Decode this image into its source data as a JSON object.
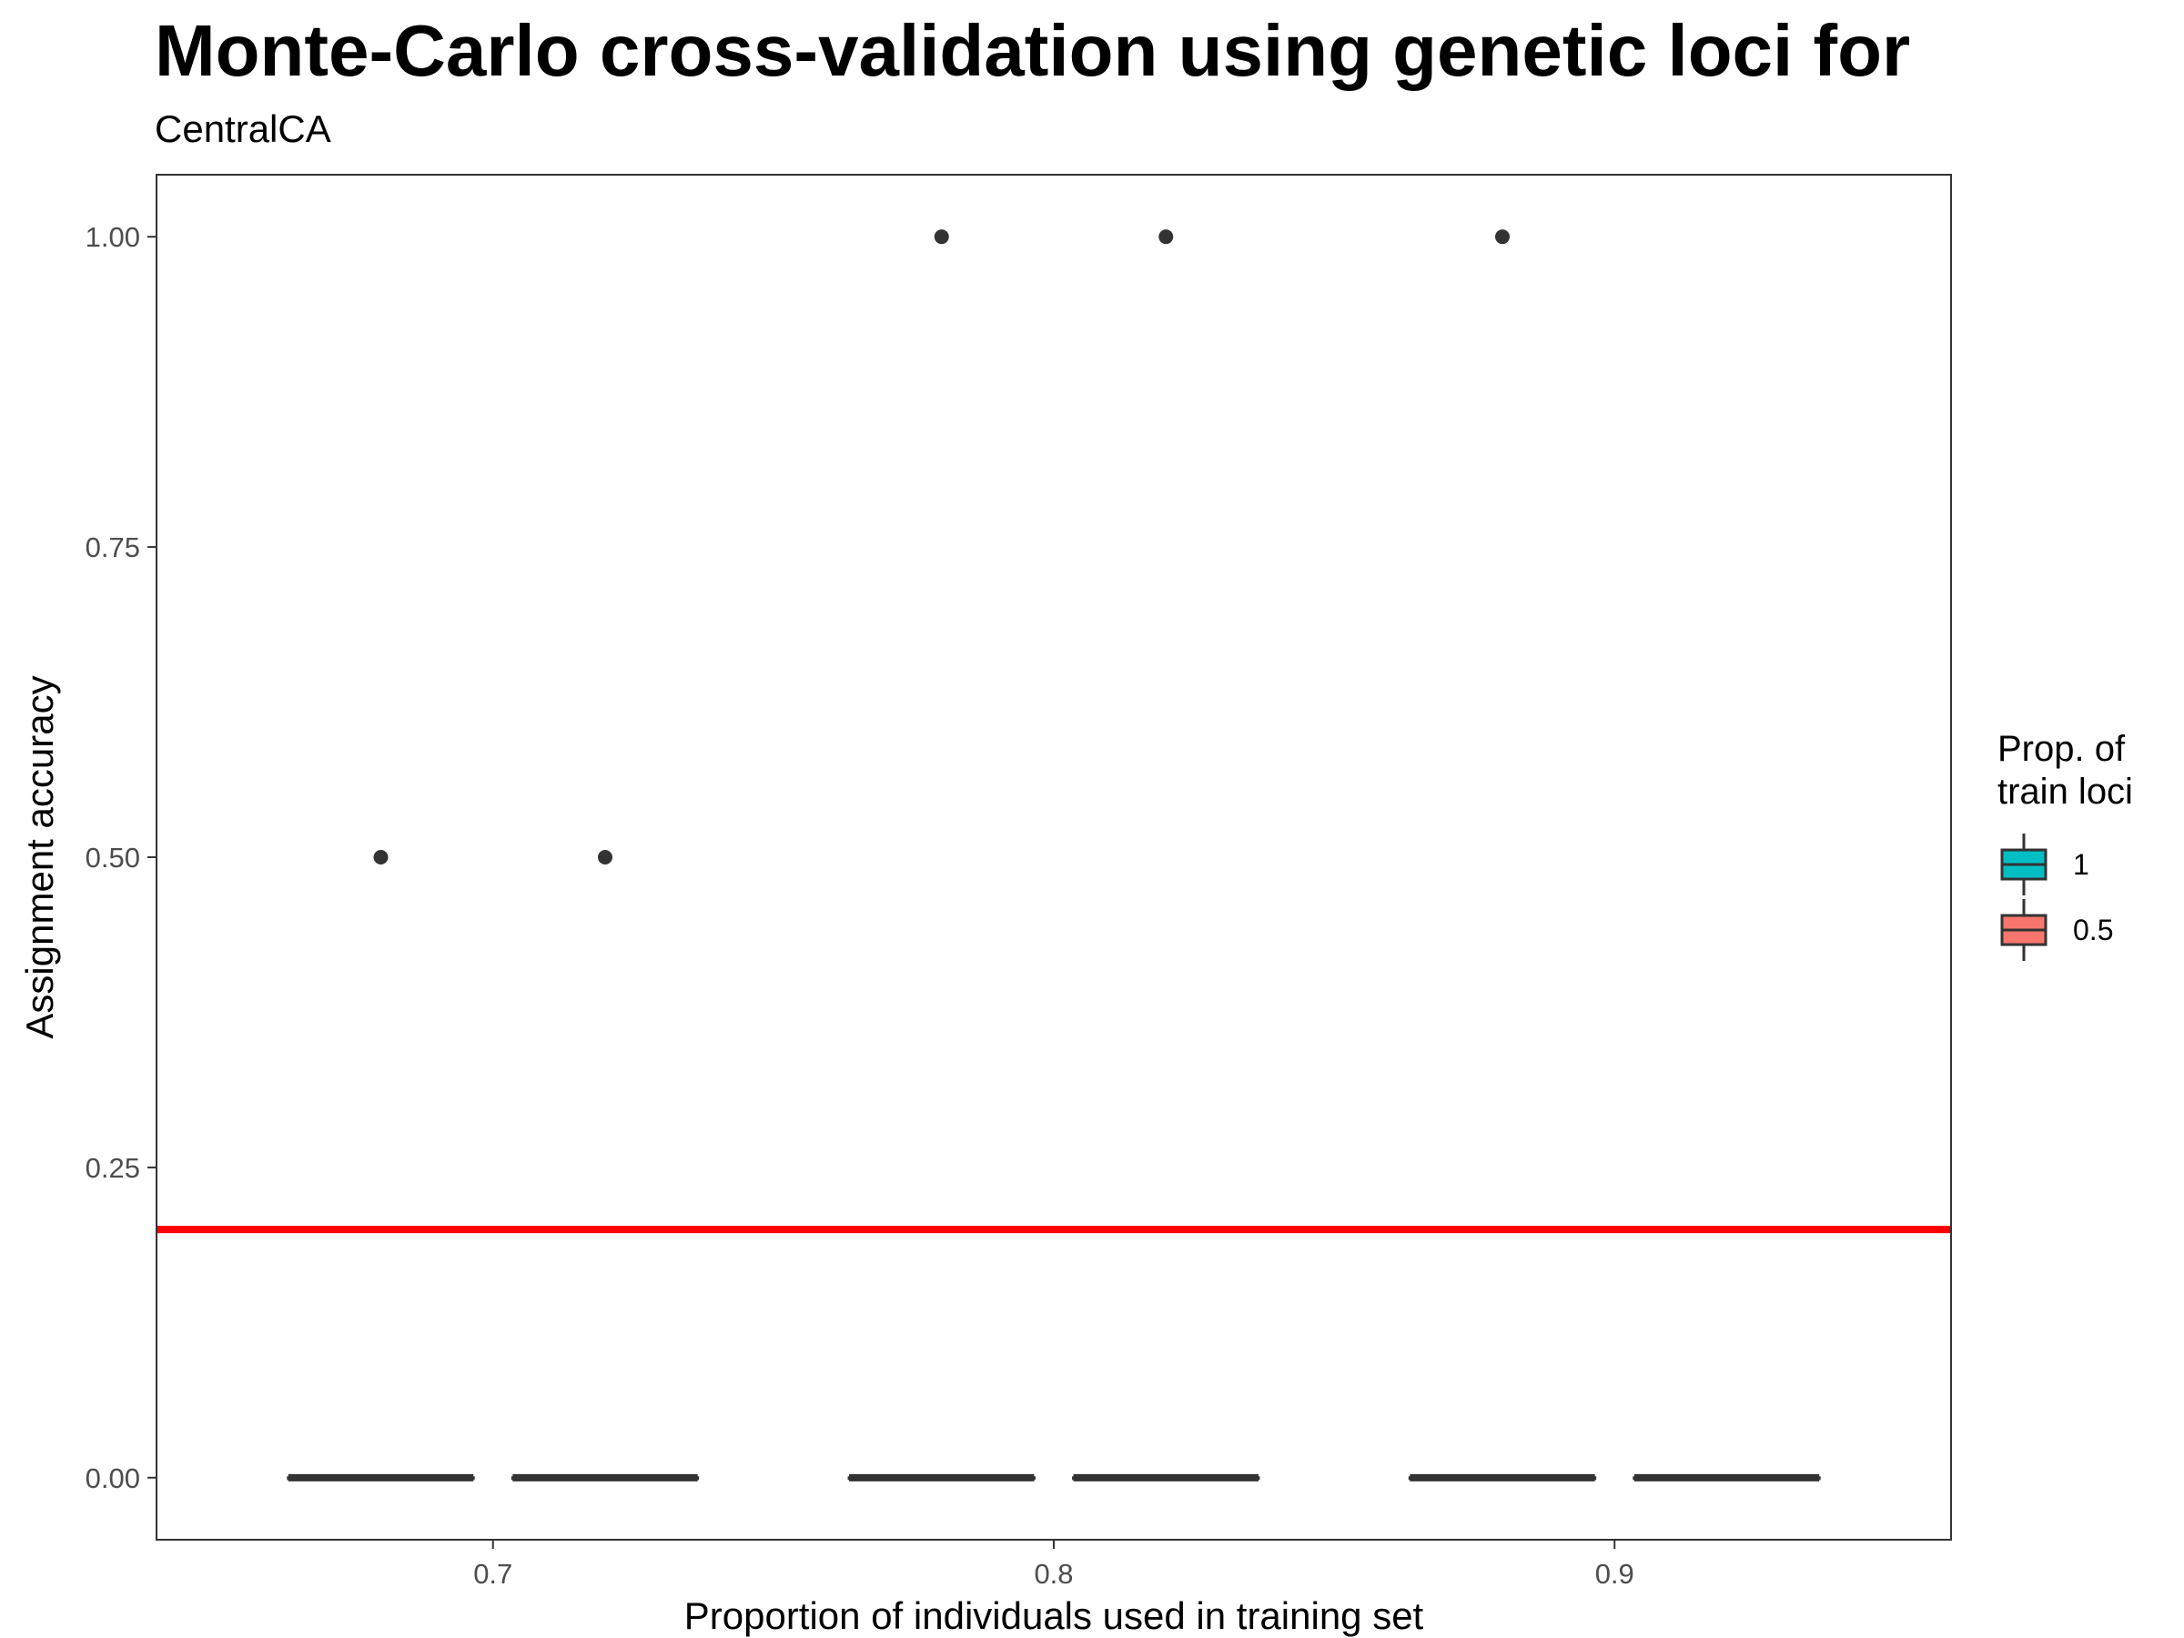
{
  "chart_data": {
    "type": "boxplot",
    "title": "Monte-Carlo cross-validation using genetic loci for",
    "subtitle": "CentralCA",
    "xlabel": "Proportion of individuals used in training set",
    "ylabel": "Assignment accuracy",
    "x_ticks": [
      "0.7",
      "0.8",
      "0.9"
    ],
    "y_ticks": [
      "0.00",
      "0.25",
      "0.50",
      "0.75",
      "1.00"
    ],
    "ylim": [
      -0.05,
      1.05
    ],
    "xlim": [
      0.64,
      0.96
    ],
    "legend": {
      "title_line1": "Prop. of",
      "title_line2": "train loci",
      "position": "right",
      "entries": [
        {
          "label": "1",
          "color": "#00BFC4"
        },
        {
          "label": "0.5",
          "color": "#F8766D"
        }
      ]
    },
    "reference_line": {
      "y": 0.2,
      "color": "#FF0000"
    },
    "series": [
      {
        "name": "1",
        "boxes": [
          {
            "x": 0.68,
            "median": 0,
            "q1": 0,
            "q3": 0,
            "outliers": [
              0.5
            ]
          },
          {
            "x": 0.78,
            "median": 0,
            "q1": 0,
            "q3": 0,
            "outliers": [
              1.0
            ]
          },
          {
            "x": 0.88,
            "median": 0,
            "q1": 0,
            "q3": 0,
            "outliers": [
              1.0
            ]
          }
        ]
      },
      {
        "name": "0.5",
        "boxes": [
          {
            "x": 0.72,
            "median": 0,
            "q1": 0,
            "q3": 0,
            "outliers": [
              0.5
            ]
          },
          {
            "x": 0.82,
            "median": 0,
            "q1": 0,
            "q3": 0,
            "outliers": [
              1.0
            ]
          },
          {
            "x": 0.92,
            "median": 0,
            "q1": 0,
            "q3": 0,
            "outliers": []
          }
        ]
      }
    ]
  }
}
